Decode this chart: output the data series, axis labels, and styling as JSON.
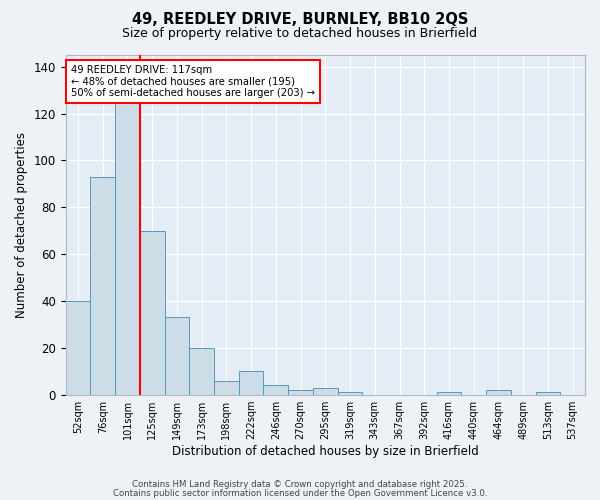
{
  "title1": "49, REEDLEY DRIVE, BURNLEY, BB10 2QS",
  "title2": "Size of property relative to detached houses in Brierfield",
  "xlabel": "Distribution of detached houses by size in Brierfield",
  "ylabel": "Number of detached properties",
  "bin_labels": [
    "52sqm",
    "76sqm",
    "101sqm",
    "125sqm",
    "149sqm",
    "173sqm",
    "198sqm",
    "222sqm",
    "246sqm",
    "270sqm",
    "295sqm",
    "319sqm",
    "343sqm",
    "367sqm",
    "392sqm",
    "416sqm",
    "440sqm",
    "464sqm",
    "489sqm",
    "513sqm",
    "537sqm"
  ],
  "bar_heights": [
    40,
    93,
    130,
    70,
    33,
    20,
    6,
    10,
    4,
    2,
    3,
    1,
    0,
    0,
    0,
    1,
    0,
    2,
    0,
    1,
    0
  ],
  "bar_color": "#ccdde8",
  "bar_edgecolor": "#5599bb",
  "red_line_after_bar": 2,
  "annotation_text": "49 REEDLEY DRIVE: 117sqm\n← 48% of detached houses are smaller (195)\n50% of semi-detached houses are larger (203) →",
  "annotation_box_color": "white",
  "annotation_box_edgecolor": "red",
  "red_line_color": "red",
  "ylim": [
    0,
    145
  ],
  "yticks": [
    0,
    20,
    40,
    60,
    80,
    100,
    120,
    140
  ],
  "footer1": "Contains HM Land Registry data © Crown copyright and database right 2025.",
  "footer2": "Contains public sector information licensed under the Open Government Licence v3.0.",
  "bg_color": "#eef2f7",
  "plot_bg_color": "#e4edf5",
  "grid_color": "white"
}
